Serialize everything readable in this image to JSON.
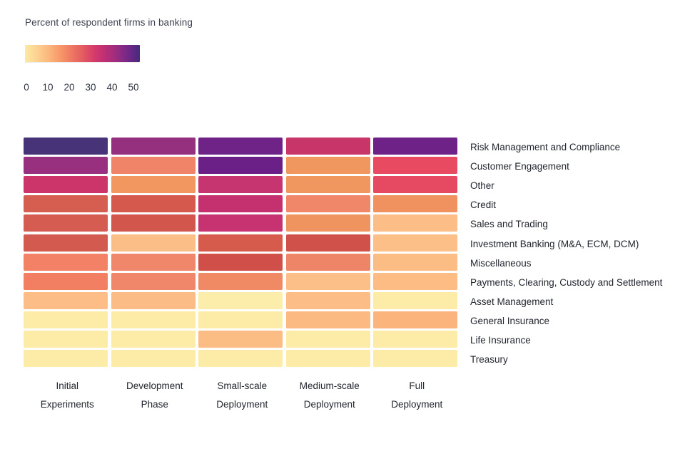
{
  "legend": {
    "title": "Percent of respondent firms in banking",
    "ticks": [
      "0",
      "10",
      "20",
      "30",
      "40",
      "50"
    ],
    "tick_spacing_px": 30,
    "gradient": [
      "#fdeaa2",
      "#fcd292",
      "#fcb97e",
      "#f79a6b",
      "#ef7b62",
      "#e35c62",
      "#d63c6a",
      "#bc2e75",
      "#9b2d80",
      "#722788",
      "#462a7c"
    ]
  },
  "chart_data": {
    "type": "heatmap",
    "title": "Percent of respondent firms in banking",
    "colorbar": {
      "min": 0,
      "max": 50,
      "ticks": [
        0,
        10,
        20,
        30,
        40,
        50
      ]
    },
    "columns": [
      "Initial Experiments",
      "Development Phase",
      "Small-scale Deployment",
      "Medium-scale Deployment",
      "Full Deployment"
    ],
    "rows": [
      "Risk Management and Compliance",
      "Customer Engagement",
      "Other",
      "Credit",
      "Sales and Trading",
      "Investment Banking (M&A, ECM, DCM)",
      "Miscellaneous",
      "Payments, Clearing, Custody and Settlement",
      "Asset Management",
      "General Insurance",
      "Life Insurance",
      "Treasury"
    ],
    "values": [
      [
        50,
        38,
        44,
        31,
        44
      ],
      [
        38,
        17,
        45,
        14,
        28
      ],
      [
        31,
        14,
        33,
        14,
        28
      ],
      [
        22,
        23,
        33,
        16,
        15
      ],
      [
        23,
        24,
        33,
        15,
        9
      ],
      [
        24,
        9,
        23,
        25,
        9
      ],
      [
        17,
        16,
        26,
        16,
        9
      ],
      [
        18,
        16,
        16,
        9,
        10
      ],
      [
        10,
        10,
        3,
        9,
        3
      ],
      [
        3,
        3,
        3,
        10,
        11
      ],
      [
        3,
        3,
        10,
        3,
        3
      ],
      [
        3,
        3,
        3,
        3,
        3
      ]
    ],
    "cell_colors": [
      [
        "#473377",
        "#95307e",
        "#702386",
        "#c83568",
        "#6e2287"
      ],
      [
        "#98307f",
        "#f08468",
        "#6b2088",
        "#f0965f",
        "#e84a62"
      ],
      [
        "#cb3569",
        "#f2975f",
        "#c73570",
        "#f0975f",
        "#e64a63"
      ],
      [
        "#d65e51",
        "#d5594d",
        "#c5316f",
        "#f08768",
        "#ef9260"
      ],
      [
        "#d55c50",
        "#d2564c",
        "#c73371",
        "#f0945f",
        "#fcbd86"
      ],
      [
        "#d35a4e",
        "#fcbe87",
        "#d65b4d",
        "#d0504a",
        "#fcbf88"
      ],
      [
        "#f38165",
        "#f0866a",
        "#d14f49",
        "#ef8567",
        "#fcbd85"
      ],
      [
        "#f37f63",
        "#f0876b",
        "#ef8a64",
        "#fcbf88",
        "#fcbc84"
      ],
      [
        "#fcbd86",
        "#fcbc85",
        "#fdedaa",
        "#fcbd86",
        "#fdeca8"
      ],
      [
        "#fdeca8",
        "#fdeca7",
        "#fdeca8",
        "#fbba82",
        "#fbb47b"
      ],
      [
        "#fdeca8",
        "#fdeca7",
        "#fcbd85",
        "#fdeca8",
        "#fdeca8"
      ],
      [
        "#fdeca8",
        "#fdeca7",
        "#fdeca8",
        "#fdeca8",
        "#fdeca8"
      ]
    ],
    "legend_position": "top-left",
    "grid": false
  }
}
